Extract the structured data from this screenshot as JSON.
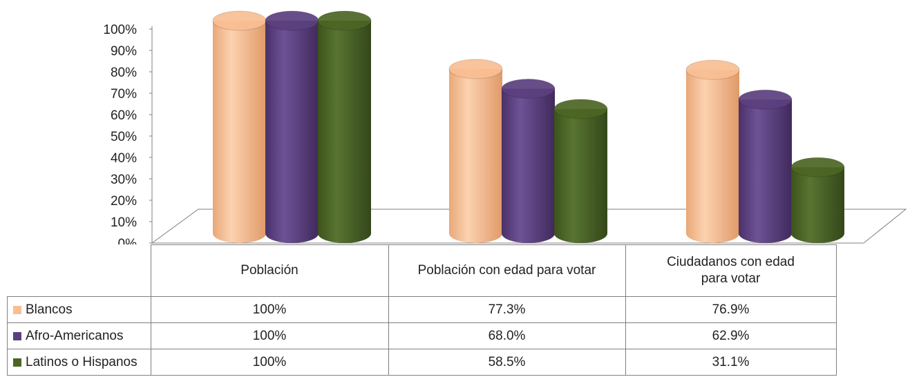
{
  "chart_data": {
    "type": "bar",
    "style": "3d-cylinder",
    "categories": [
      "Población",
      "Población con edad para votar",
      "Ciudadanos con edad para votar"
    ],
    "series": [
      {
        "name": "Blancos",
        "values": [
          100,
          77.3,
          76.9
        ],
        "labels": [
          "100%",
          "77.3%",
          "76.9%"
        ],
        "color": "#f9be92"
      },
      {
        "name": "Afro-Americanos",
        "values": [
          100,
          68.0,
          62.9
        ],
        "labels": [
          "100%",
          "68.0%",
          "62.9%"
        ],
        "color": "#5b3f7e"
      },
      {
        "name": "Latinos o Hispanos",
        "values": [
          100,
          58.5,
          31.1
        ],
        "labels": [
          "100%",
          "58.5%",
          "31.1%"
        ],
        "color": "#4c6524"
      }
    ],
    "ylim": [
      0,
      100
    ],
    "yticks": [
      "0%",
      "10%",
      "20%",
      "30%",
      "40%",
      "50%",
      "60%",
      "70%",
      "80%",
      "90%",
      "100%"
    ],
    "legend": "data-table"
  }
}
